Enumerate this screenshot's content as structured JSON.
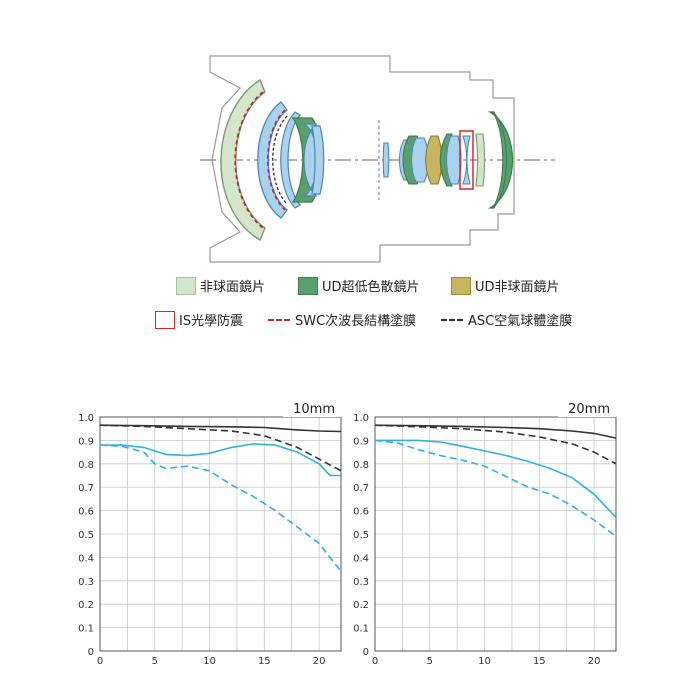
{
  "legend": {
    "aspherical": "非球面鏡片",
    "ud": "UD超低色散鏡片",
    "ud_aspherical": "UD非球面鏡片",
    "is": "IS光學防震",
    "swc": "SWC次波長結構塗膜",
    "asc": "ASC空氣球體塗膜"
  },
  "colors": {
    "aspherical": "#d4e5cb",
    "ud": "#5b9f6e",
    "ud_aspherical": "#c7b55f",
    "glass": "#a9d2ef",
    "is_border": "#d12a2a",
    "swc_line": "#c0272d",
    "mtf_contrast": "#333333",
    "mtf_resolution": "#2fb1e6"
  },
  "chart_data": [
    {
      "type": "line",
      "title": "10mm",
      "xlim": [
        0,
        22
      ],
      "ylim": [
        0,
        1.0
      ],
      "xticks": [
        0,
        5,
        10,
        15,
        20
      ],
      "yticks": [
        0,
        0.1,
        0.2,
        0.3,
        0.4,
        0.5,
        0.6,
        0.7,
        0.8,
        0.9,
        1.0
      ],
      "grid": true,
      "series": [
        {
          "color": "dark",
          "style": "solid",
          "x": [
            0,
            4,
            8,
            12,
            15,
            18,
            20,
            22
          ],
          "y": [
            0.965,
            0.963,
            0.96,
            0.958,
            0.955,
            0.945,
            0.94,
            0.938
          ]
        },
        {
          "color": "dark",
          "style": "dashed",
          "x": [
            0,
            4,
            8,
            12,
            15,
            18,
            20,
            22
          ],
          "y": [
            0.965,
            0.96,
            0.95,
            0.94,
            0.92,
            0.87,
            0.82,
            0.77
          ]
        },
        {
          "color": "blue",
          "style": "solid",
          "x": [
            0,
            2,
            4,
            6,
            8,
            10,
            12,
            14,
            16,
            18,
            20,
            21,
            22
          ],
          "y": [
            0.88,
            0.88,
            0.87,
            0.84,
            0.835,
            0.845,
            0.87,
            0.885,
            0.88,
            0.85,
            0.8,
            0.75,
            0.75
          ]
        },
        {
          "color": "blue",
          "style": "dashed",
          "x": [
            0,
            2,
            4,
            5,
            6,
            8,
            10,
            12,
            14,
            16,
            18,
            20,
            22
          ],
          "y": [
            0.88,
            0.875,
            0.85,
            0.8,
            0.78,
            0.79,
            0.77,
            0.71,
            0.66,
            0.6,
            0.53,
            0.46,
            0.34
          ]
        }
      ]
    },
    {
      "type": "line",
      "title": "20mm",
      "xlim": [
        0,
        22
      ],
      "ylim": [
        0,
        1.0
      ],
      "xticks": [
        0,
        5,
        10,
        15,
        20
      ],
      "yticks": [
        0,
        0.1,
        0.2,
        0.3,
        0.4,
        0.5,
        0.6,
        0.7,
        0.8,
        0.9,
        1.0
      ],
      "grid": true,
      "series": [
        {
          "color": "dark",
          "style": "solid",
          "x": [
            0,
            4,
            8,
            12,
            15,
            18,
            20,
            22
          ],
          "y": [
            0.965,
            0.963,
            0.96,
            0.955,
            0.95,
            0.94,
            0.93,
            0.91
          ]
        },
        {
          "color": "dark",
          "style": "dashed",
          "x": [
            0,
            4,
            8,
            12,
            15,
            18,
            20,
            22
          ],
          "y": [
            0.965,
            0.958,
            0.95,
            0.935,
            0.915,
            0.885,
            0.85,
            0.8
          ]
        },
        {
          "color": "blue",
          "style": "solid",
          "x": [
            0,
            2,
            4,
            6,
            8,
            10,
            12,
            14,
            16,
            18,
            20,
            22
          ],
          "y": [
            0.9,
            0.9,
            0.9,
            0.893,
            0.875,
            0.855,
            0.835,
            0.81,
            0.78,
            0.74,
            0.67,
            0.57
          ]
        },
        {
          "color": "blue",
          "style": "dashed",
          "x": [
            0,
            2,
            4,
            6,
            8,
            10,
            12,
            14,
            16,
            18,
            20,
            22
          ],
          "y": [
            0.9,
            0.89,
            0.86,
            0.835,
            0.815,
            0.79,
            0.745,
            0.7,
            0.67,
            0.62,
            0.56,
            0.49
          ]
        }
      ]
    }
  ]
}
